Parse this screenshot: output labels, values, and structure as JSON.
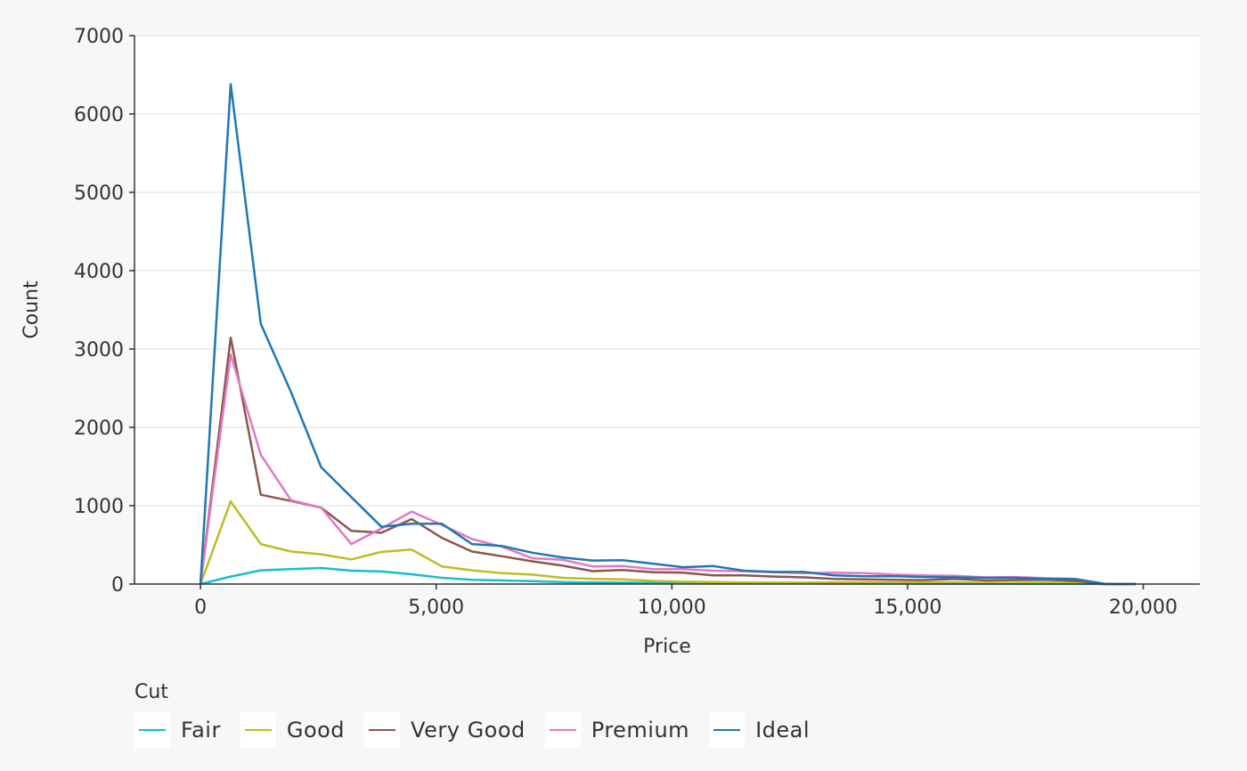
{
  "chart_data": {
    "type": "line",
    "title": "",
    "xlabel": "Price",
    "ylabel": "Count",
    "xlim": [
      -1400,
      21200
    ],
    "ylim": [
      0,
      7000
    ],
    "x_ticks": [
      0,
      5000,
      10000,
      15000,
      20000
    ],
    "x_tick_labels": [
      "0",
      "5,000",
      "10,000",
      "15,000",
      "20,000"
    ],
    "y_ticks": [
      0,
      1000,
      2000,
      3000,
      4000,
      5000,
      6000,
      7000
    ],
    "y_tick_labels": [
      "0",
      "1000",
      "2000",
      "3000",
      "4000",
      "5000",
      "6000",
      "7000"
    ],
    "grid": "horizontal",
    "legend_title": "Cut",
    "legend_position": "bottom-left",
    "x": [
      0,
      640,
      1280,
      1920,
      2560,
      3200,
      3840,
      4480,
      5120,
      5760,
      6400,
      7040,
      7680,
      8320,
      8960,
      9600,
      10240,
      10880,
      11520,
      12160,
      12800,
      13440,
      14080,
      14720,
      15360,
      16000,
      16640,
      17280,
      17920,
      18560,
      19200,
      19840
    ],
    "series": [
      {
        "name": "Fair",
        "color": "#17becf",
        "values": [
          0,
          95,
          175,
          190,
          205,
          170,
          160,
          125,
          80,
          55,
          45,
          38,
          25,
          20,
          18,
          14,
          12,
          12,
          10,
          8,
          8,
          7,
          6,
          6,
          5,
          5,
          4,
          4,
          3,
          3,
          0,
          0
        ]
      },
      {
        "name": "Good",
        "color": "#bcbd22",
        "values": [
          0,
          1055,
          510,
          415,
          380,
          315,
          410,
          440,
          225,
          175,
          140,
          120,
          80,
          65,
          60,
          40,
          30,
          25,
          20,
          18,
          18,
          20,
          22,
          20,
          20,
          22,
          15,
          15,
          18,
          15,
          0,
          0
        ]
      },
      {
        "name": "Very Good",
        "color": "#8c564b",
        "values": [
          0,
          3145,
          1140,
          1060,
          975,
          680,
          655,
          830,
          590,
          415,
          355,
          290,
          235,
          165,
          180,
          150,
          145,
          110,
          110,
          95,
          85,
          65,
          60,
          55,
          50,
          65,
          45,
          50,
          55,
          40,
          0,
          0
        ]
      },
      {
        "name": "Premium",
        "color": "#e377c2",
        "values": [
          0,
          2930,
          1650,
          1070,
          975,
          510,
          710,
          925,
          755,
          575,
          475,
          330,
          310,
          225,
          230,
          190,
          190,
          170,
          165,
          150,
          140,
          145,
          140,
          120,
          110,
          105,
          85,
          90,
          75,
          65,
          0,
          0
        ]
      },
      {
        "name": "Ideal",
        "color": "#1f77b4",
        "values": [
          0,
          6380,
          3320,
          2450,
          1490,
          1110,
          730,
          770,
          770,
          510,
          485,
          400,
          340,
          300,
          305,
          260,
          215,
          230,
          170,
          155,
          155,
          110,
          100,
          100,
          90,
          85,
          80,
          80,
          65,
          65,
          0,
          0
        ]
      }
    ]
  }
}
